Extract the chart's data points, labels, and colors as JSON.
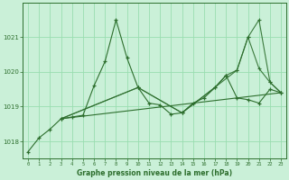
{
  "title": "Graphe pression niveau de la mer (hPa)",
  "background_color": "#caf0d8",
  "grid_color": "#99ddb0",
  "line_color": "#2d6e2d",
  "xlim": [
    -0.5,
    23.5
  ],
  "ylim": [
    1017.5,
    1022.0
  ],
  "xticks": [
    0,
    1,
    2,
    3,
    4,
    5,
    6,
    7,
    8,
    9,
    10,
    11,
    12,
    13,
    14,
    15,
    16,
    17,
    18,
    19,
    20,
    21,
    22,
    23
  ],
  "yticks": [
    1018,
    1019,
    1020,
    1021
  ],
  "series": [
    {
      "x": [
        0,
        1,
        2,
        3,
        4,
        5,
        6,
        7,
        8,
        9,
        10,
        11,
        12,
        13,
        14,
        15,
        16,
        17,
        18,
        19,
        20,
        21,
        22,
        23
      ],
      "y": [
        1017.7,
        1018.1,
        1018.35,
        1018.65,
        1018.7,
        1018.75,
        1019.6,
        1020.3,
        1021.5,
        1020.4,
        1019.55,
        1019.1,
        1019.05,
        1018.78,
        1018.82,
        1019.1,
        1019.25,
        1019.55,
        1019.9,
        1019.25,
        1019.2,
        1019.1,
        1019.5,
        1019.4
      ]
    },
    {
      "x": [
        3,
        10,
        14,
        17,
        18,
        19,
        20,
        21,
        22,
        23
      ],
      "y": [
        1018.65,
        1019.55,
        1018.82,
        1019.55,
        1019.9,
        1020.05,
        1021.0,
        1021.5,
        1019.7,
        1019.4
      ]
    },
    {
      "x": [
        3,
        10,
        14,
        19,
        20,
        21,
        22,
        23
      ],
      "y": [
        1018.65,
        1019.55,
        1018.82,
        1020.05,
        1021.0,
        1020.1,
        1019.7,
        1019.4
      ]
    },
    {
      "x": [
        3,
        23
      ],
      "y": [
        1018.65,
        1019.4
      ]
    }
  ]
}
